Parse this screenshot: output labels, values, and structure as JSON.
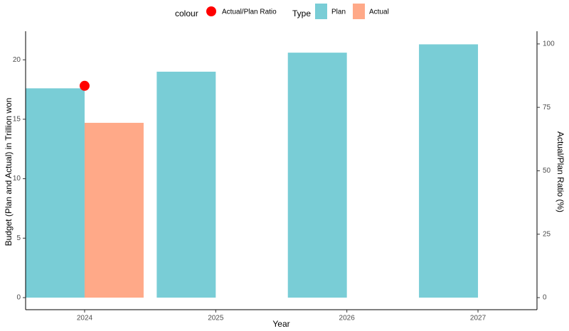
{
  "chart_data": {
    "type": "bar",
    "categories": [
      "2024",
      "2025",
      "2026",
      "2027"
    ],
    "xlabel": "Year",
    "ylabel": "Budget (Plan and Actual) in Trillion won",
    "y2label": "Actual/Plan Ratio (%)",
    "ylim": [
      0,
      22.4
    ],
    "y_ticks": [
      0,
      5,
      10,
      15,
      20
    ],
    "y2lim": [
      0,
      105
    ],
    "y2_ticks": [
      0,
      25,
      50,
      75,
      100
    ],
    "grid": false,
    "legend_position": "top",
    "series": [
      {
        "name": "Plan",
        "color": "#79CDD6",
        "values": [
          17.6,
          19.0,
          20.6,
          21.3
        ]
      },
      {
        "name": "Actual",
        "color": "#FFA988",
        "values": [
          14.7,
          null,
          null,
          null
        ]
      }
    ],
    "ratio": {
      "name": "Actual/Plan Ratio",
      "color": "#FF0000",
      "values": [
        83.5,
        null,
        null,
        null
      ]
    }
  },
  "legend": {
    "colour_title": "colour",
    "type_title": "Type"
  }
}
